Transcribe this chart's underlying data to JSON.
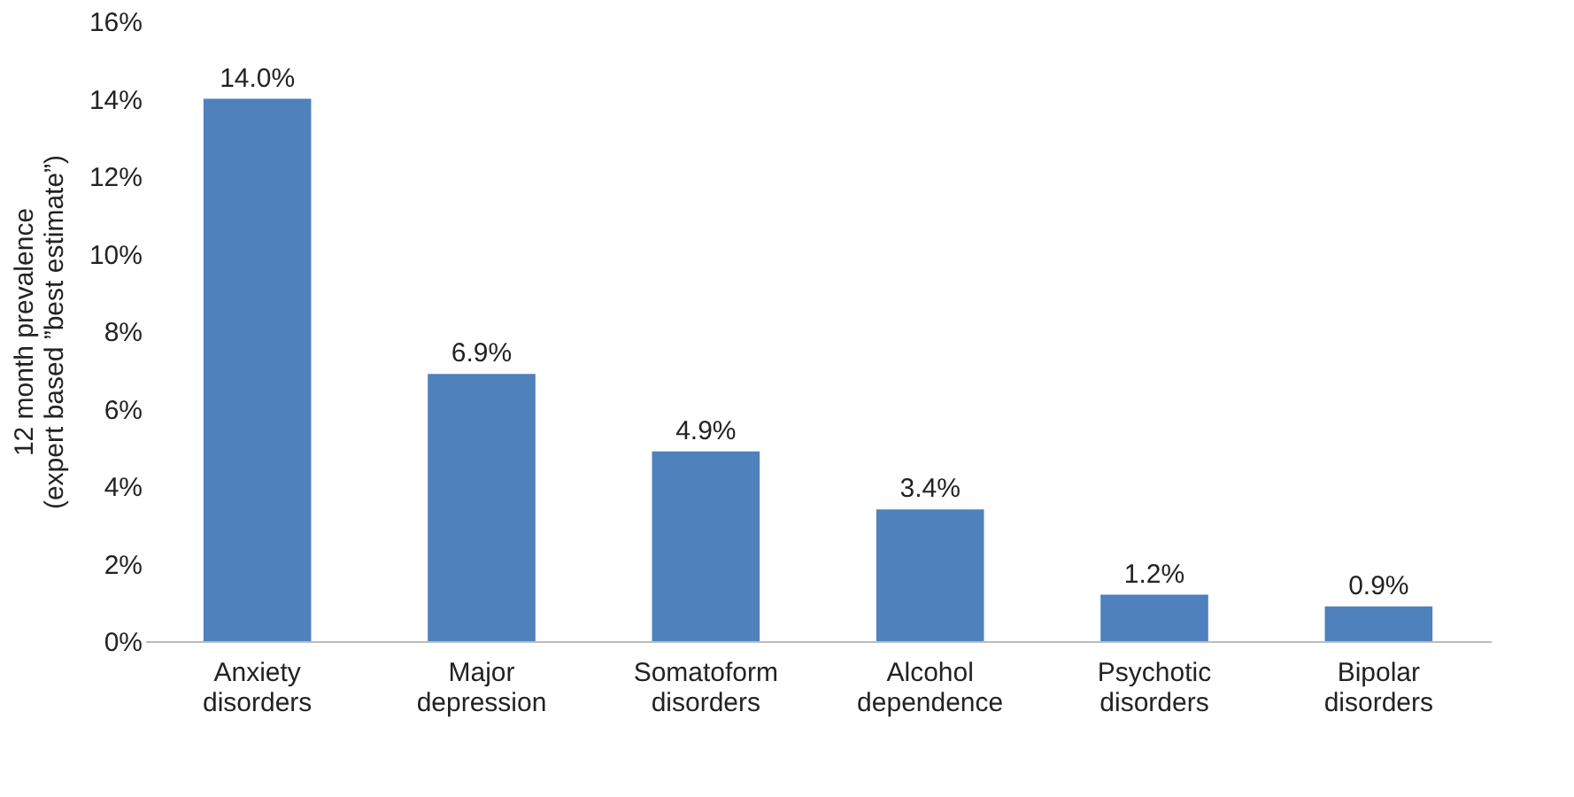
{
  "chart_data": {
    "type": "bar",
    "ylabel": "12 month prevalence (expert based ”best estimate”)",
    "categories": [
      "Anxiety disorders",
      "Major depression",
      "Somatoform disorders",
      "Alcohol dependence",
      "Psychotic disorders",
      "Bipolar disorders"
    ],
    "values": [
      14.0,
      6.9,
      4.9,
      3.4,
      1.2,
      0.9
    ],
    "value_labels": [
      "14.0%",
      "6.9%",
      "4.9%",
      "3.4%",
      "1.2%",
      "0.9%"
    ],
    "color": "#4f81bd",
    "ylim": [
      0,
      16
    ],
    "yticks": [
      {
        "value": 0,
        "label": "0%"
      },
      {
        "value": 2,
        "label": "2%"
      },
      {
        "value": 4,
        "label": "4%"
      },
      {
        "value": 6,
        "label": "6%"
      },
      {
        "value": 8,
        "label": "8%"
      },
      {
        "value": 10,
        "label": "10%"
      },
      {
        "value": 12,
        "label": "12%"
      },
      {
        "value": 14,
        "label": "14%"
      },
      {
        "value": 16,
        "label": "16%"
      }
    ],
    "grid": false
  }
}
